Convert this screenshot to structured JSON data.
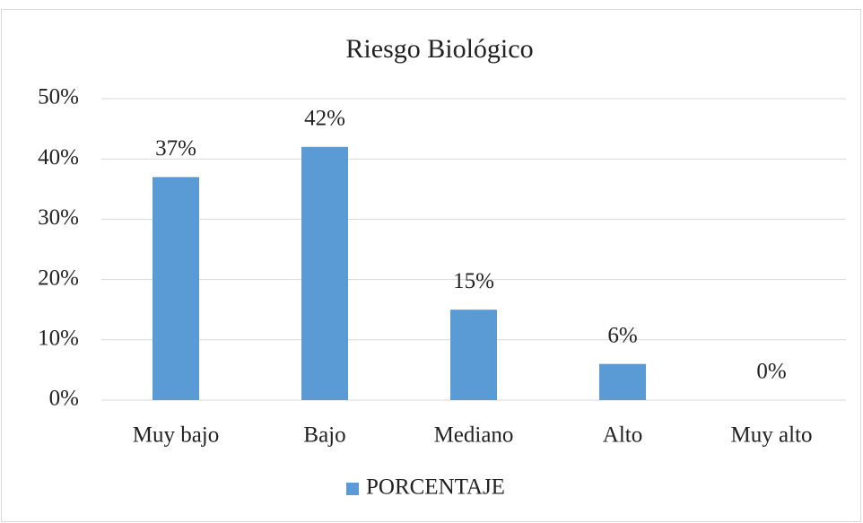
{
  "chart_data": {
    "type": "bar",
    "title": "Riesgo Biológico",
    "categories": [
      "Muy bajo",
      "Bajo",
      "Mediano",
      "Alto",
      "Muy alto"
    ],
    "series": [
      {
        "name": "PORCENTAJE",
        "color": "#5b9bd5",
        "values": [
          37,
          42,
          15,
          6,
          0
        ],
        "value_labels": [
          "37%",
          "42%",
          "15%",
          "6%",
          "0%"
        ]
      }
    ],
    "ylim": [
      0,
      50
    ],
    "yticks": [
      {
        "value": 0,
        "label": "0%"
      },
      {
        "value": 10,
        "label": "10%"
      },
      {
        "value": 20,
        "label": "20%"
      },
      {
        "value": 30,
        "label": "30%"
      },
      {
        "value": 40,
        "label": "40%"
      },
      {
        "value": 50,
        "label": "50%"
      }
    ],
    "grid": true,
    "legend": "bottom"
  }
}
